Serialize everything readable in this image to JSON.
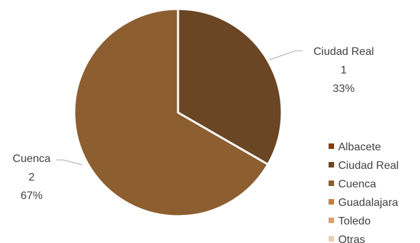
{
  "chart_data": {
    "type": "pie",
    "slices": [
      {
        "label": "Ciudad Real",
        "value": 1,
        "percent": "33%",
        "color": "#6a4624"
      },
      {
        "label": "Cuenca",
        "value": 2,
        "percent": "67%",
        "color": "#8c5e30"
      }
    ],
    "legend": {
      "placement": "bottom-right",
      "entries": [
        {
          "label": "Albacete",
          "color": "#843c0c"
        },
        {
          "label": "Ciudad Real",
          "color": "#6a4624"
        },
        {
          "label": "Cuenca",
          "color": "#8c5e30"
        },
        {
          "label": "Guadalajara",
          "color": "#c08040"
        },
        {
          "label": "Toledo",
          "color": "#d9a070"
        },
        {
          "label": "Otras",
          "color": "#e8cfb5"
        }
      ]
    },
    "slice_border_color": "#ffffff",
    "leader_line_color": "#a6a6a6"
  }
}
